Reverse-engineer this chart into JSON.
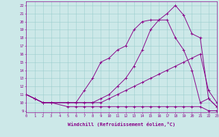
{
  "xlabel": "Windchill (Refroidissement éolien,°C)",
  "bg_color": "#cce8e8",
  "line_color": "#880088",
  "grid_color": "#99cccc",
  "ylim": [
    8.8,
    22.5
  ],
  "xlim": [
    0,
    23
  ],
  "lines": [
    {
      "x": [
        0,
        1,
        2,
        3,
        5,
        6,
        7,
        8,
        9,
        10,
        11,
        12,
        13,
        14,
        15,
        16,
        17,
        18,
        19,
        20,
        21,
        22,
        23
      ],
      "y": [
        11,
        10.5,
        10,
        10,
        10,
        10,
        11.5,
        13,
        15,
        15.5,
        16.5,
        17,
        19,
        20,
        20.2,
        20.2,
        21,
        22,
        20.8,
        18.5,
        18,
        10.5,
        9.5
      ]
    },
    {
      "x": [
        0,
        1,
        2,
        3,
        5,
        6,
        7,
        8,
        9,
        10,
        11,
        12,
        13,
        14,
        15,
        16,
        17,
        18,
        19,
        20,
        21,
        22,
        23
      ],
      "y": [
        11,
        10.5,
        10,
        10,
        10,
        10,
        10,
        10,
        10.5,
        11,
        12,
        13,
        14.5,
        16.5,
        19,
        20.2,
        20.2,
        18,
        16.5,
        14,
        10,
        10.5,
        9.5
      ]
    },
    {
      "x": [
        0,
        1,
        2,
        3,
        5,
        6,
        7,
        8,
        9,
        10,
        11,
        12,
        13,
        14,
        15,
        16,
        17,
        18,
        19,
        20,
        21,
        22,
        23
      ],
      "y": [
        11,
        10.5,
        10,
        10,
        10,
        10,
        10,
        10,
        10,
        10.5,
        11,
        11.5,
        12,
        12.5,
        13,
        13.5,
        14,
        14.5,
        15,
        15.5,
        16,
        11.5,
        10
      ]
    },
    {
      "x": [
        0,
        1,
        2,
        3,
        5,
        6,
        7,
        8,
        9,
        10,
        11,
        12,
        13,
        14,
        15,
        16,
        17,
        18,
        19,
        20,
        21,
        22,
        23
      ],
      "y": [
        11,
        10.5,
        10,
        10,
        9.5,
        9.5,
        9.5,
        9.5,
        9.5,
        9.5,
        9.5,
        9.5,
        9.5,
        9.5,
        9.5,
        9.5,
        9.5,
        9.5,
        9.5,
        9.5,
        9.5,
        9,
        9
      ]
    }
  ]
}
